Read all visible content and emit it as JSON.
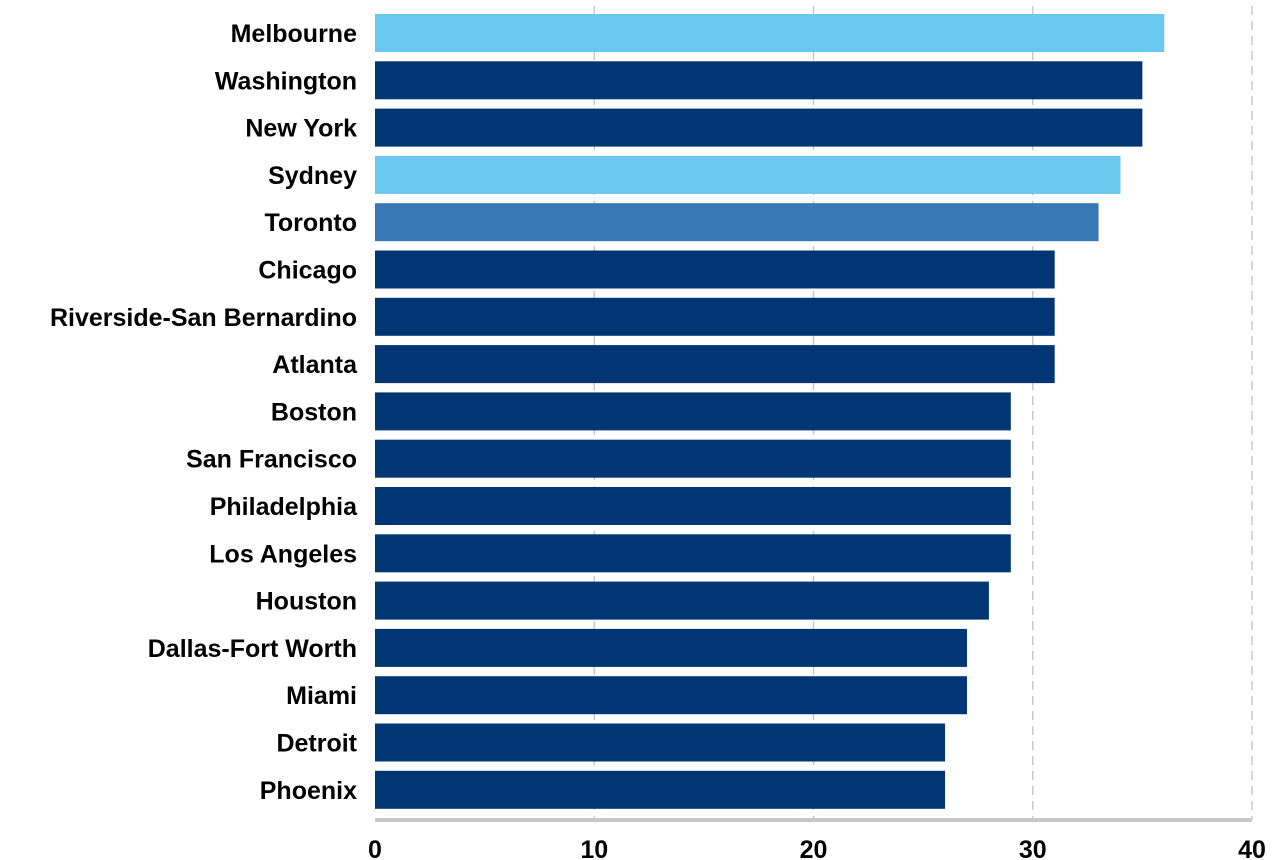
{
  "chart_data": {
    "type": "bar",
    "orientation": "horizontal",
    "categories": [
      "Melbourne",
      "Washington",
      "New York",
      "Sydney",
      "Toronto",
      "Chicago",
      "Riverside-San Bernardino",
      "Atlanta",
      "Boston",
      "San Francisco",
      "Philadelphia",
      "Los Angeles",
      "Houston",
      "Dallas-Fort Worth",
      "Miami",
      "Detroit",
      "Phoenix"
    ],
    "values": [
      36,
      35,
      35,
      34,
      33,
      31,
      31,
      31,
      29,
      29,
      29,
      29,
      28,
      27,
      27,
      26,
      26
    ],
    "bar_colors": [
      "#6ac7ee",
      "#003673",
      "#003673",
      "#6ac7ee",
      "#3878b4",
      "#003673",
      "#003673",
      "#003673",
      "#003673",
      "#003673",
      "#003673",
      "#003673",
      "#003673",
      "#003673",
      "#003673",
      "#003673",
      "#003673"
    ],
    "title": "",
    "xlabel": "",
    "ylabel": "",
    "xlim": [
      0,
      40
    ],
    "x_ticks": [
      "0",
      "10",
      "20",
      "30",
      "40"
    ],
    "grid": "vertical dashed",
    "legend": "none"
  },
  "colors": {
    "grid": "#c8c8c8",
    "axis": "#c8c8c8"
  }
}
